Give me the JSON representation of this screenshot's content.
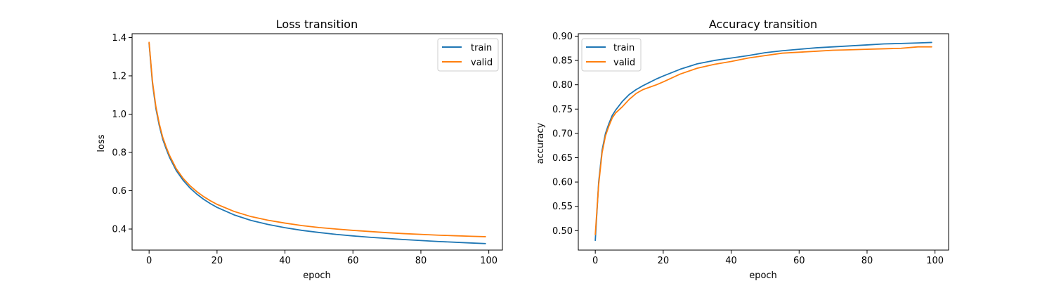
{
  "chart_data": [
    {
      "type": "line",
      "title": "Loss transition",
      "xlabel": "epoch",
      "ylabel": "loss",
      "xlim": [
        -5,
        104
      ],
      "ylim": [
        0.29,
        1.42
      ],
      "xticks": [
        0,
        20,
        40,
        60,
        80,
        100
      ],
      "yticks": [
        0.4,
        0.6,
        0.8,
        1.0,
        1.2,
        1.4
      ],
      "xtick_labels": [
        "0",
        "20",
        "40",
        "60",
        "80",
        "100"
      ],
      "ytick_labels": [
        "0.4",
        "0.6",
        "0.8",
        "1.0",
        "1.2",
        "1.4"
      ],
      "grid": false,
      "legend": "top-right",
      "x": [
        0,
        1,
        2,
        3,
        4,
        5,
        6,
        8,
        10,
        12,
        14,
        16,
        18,
        20,
        25,
        30,
        35,
        40,
        45,
        50,
        55,
        60,
        65,
        70,
        75,
        80,
        85,
        90,
        95,
        99
      ],
      "series": [
        {
          "name": "train",
          "color": "#1f77b4",
          "values": [
            1.37,
            1.16,
            1.03,
            0.94,
            0.87,
            0.82,
            0.775,
            0.705,
            0.655,
            0.615,
            0.583,
            0.556,
            0.533,
            0.513,
            0.474,
            0.445,
            0.424,
            0.407,
            0.393,
            0.382,
            0.372,
            0.364,
            0.357,
            0.351,
            0.345,
            0.34,
            0.335,
            0.331,
            0.327,
            0.324
          ]
        },
        {
          "name": "valid",
          "color": "#ff7f0e",
          "values": [
            1.375,
            1.17,
            1.04,
            0.95,
            0.88,
            0.83,
            0.785,
            0.715,
            0.665,
            0.627,
            0.596,
            0.57,
            0.548,
            0.529,
            0.492,
            0.465,
            0.446,
            0.431,
            0.418,
            0.408,
            0.4,
            0.393,
            0.387,
            0.381,
            0.376,
            0.372,
            0.368,
            0.365,
            0.362,
            0.36
          ]
        }
      ]
    },
    {
      "type": "line",
      "title": "Accuracy transition",
      "xlabel": "epoch",
      "ylabel": "accuracy",
      "xlim": [
        -5,
        104
      ],
      "ylim": [
        0.46,
        0.905
      ],
      "xticks": [
        0,
        20,
        40,
        60,
        80,
        100
      ],
      "yticks": [
        0.5,
        0.55,
        0.6,
        0.65,
        0.7,
        0.75,
        0.8,
        0.85,
        0.9
      ],
      "xtick_labels": [
        "0",
        "20",
        "40",
        "60",
        "80",
        "100"
      ],
      "ytick_labels": [
        "0.50",
        "0.55",
        "0.60",
        "0.65",
        "0.70",
        "0.75",
        "0.80",
        "0.85",
        "0.90"
      ],
      "grid": false,
      "legend": "top-left",
      "x": [
        0,
        1,
        2,
        3,
        4,
        5,
        6,
        8,
        10,
        12,
        14,
        16,
        18,
        20,
        25,
        30,
        35,
        40,
        45,
        50,
        55,
        60,
        65,
        70,
        75,
        80,
        85,
        90,
        95,
        99
      ],
      "series": [
        {
          "name": "train",
          "color": "#1f77b4",
          "values": [
            0.48,
            0.6,
            0.665,
            0.7,
            0.72,
            0.737,
            0.748,
            0.766,
            0.78,
            0.79,
            0.798,
            0.805,
            0.812,
            0.818,
            0.832,
            0.843,
            0.85,
            0.855,
            0.86,
            0.866,
            0.87,
            0.873,
            0.876,
            0.878,
            0.88,
            0.882,
            0.884,
            0.885,
            0.886,
            0.887
          ]
        },
        {
          "name": "valid",
          "color": "#ff7f0e",
          "values": [
            0.492,
            0.595,
            0.66,
            0.695,
            0.715,
            0.732,
            0.742,
            0.755,
            0.77,
            0.782,
            0.79,
            0.795,
            0.8,
            0.806,
            0.822,
            0.834,
            0.842,
            0.848,
            0.855,
            0.86,
            0.865,
            0.867,
            0.869,
            0.871,
            0.872,
            0.873,
            0.874,
            0.875,
            0.878,
            0.878
          ]
        }
      ]
    }
  ]
}
